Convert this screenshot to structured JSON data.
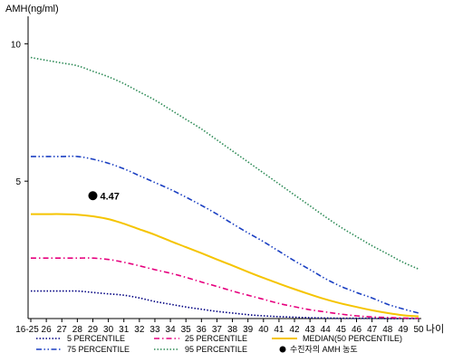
{
  "chart_data": {
    "type": "line",
    "ylabel": "AMH(ng/ml)",
    "xlabel": "나이",
    "categories": [
      "16-25",
      "26",
      "27",
      "28",
      "29",
      "30",
      "31",
      "32",
      "33",
      "34",
      "35",
      "36",
      "37",
      "38",
      "39",
      "40",
      "41",
      "42",
      "43",
      "44",
      "45",
      "46",
      "47",
      "48",
      "49",
      "50"
    ],
    "yticks": [
      5,
      10
    ],
    "ylim": [
      0,
      11
    ],
    "series": [
      {
        "name": "5 PERCENTILE",
        "color": "#000080",
        "dash": "dotted",
        "values": [
          1.0,
          1.0,
          1.0,
          1.0,
          0.95,
          0.9,
          0.85,
          0.75,
          0.62,
          0.52,
          0.42,
          0.34,
          0.26,
          0.2,
          0.14,
          0.1,
          0.07,
          0.05,
          0.03,
          0.02,
          0.01,
          0.01,
          0.01,
          0.0,
          0.0,
          0.0
        ]
      },
      {
        "name": "25 PERCENTILE",
        "color": "#e6007e",
        "dash": "dashdot",
        "values": [
          2.2,
          2.2,
          2.2,
          2.2,
          2.2,
          2.15,
          2.05,
          1.92,
          1.78,
          1.65,
          1.5,
          1.33,
          1.17,
          1.0,
          0.85,
          0.7,
          0.55,
          0.43,
          0.32,
          0.24,
          0.16,
          0.1,
          0.06,
          0.04,
          0.02,
          0.01
        ]
      },
      {
        "name": "MEDIAN(50 PERCENTILE)",
        "color": "#f5c400",
        "dash": "solid",
        "values": [
          3.8,
          3.8,
          3.8,
          3.78,
          3.72,
          3.62,
          3.45,
          3.25,
          3.05,
          2.82,
          2.6,
          2.38,
          2.15,
          1.93,
          1.7,
          1.48,
          1.27,
          1.07,
          0.88,
          0.7,
          0.55,
          0.42,
          0.3,
          0.2,
          0.12,
          0.08
        ]
      },
      {
        "name": "75 PERCENTILE",
        "color": "#1a3fc2",
        "dash": "dashdotdot",
        "values": [
          5.9,
          5.9,
          5.9,
          5.9,
          5.8,
          5.65,
          5.45,
          5.2,
          4.95,
          4.7,
          4.42,
          4.12,
          3.8,
          3.45,
          3.12,
          2.8,
          2.45,
          2.1,
          1.78,
          1.45,
          1.17,
          0.95,
          0.75,
          0.52,
          0.35,
          0.2
        ]
      },
      {
        "name": "95 PERCENTILE",
        "color": "#2e8b57",
        "dash": "dotted",
        "values": [
          9.5,
          9.4,
          9.3,
          9.2,
          9.0,
          8.8,
          8.55,
          8.25,
          7.95,
          7.6,
          7.25,
          6.9,
          6.5,
          6.1,
          5.7,
          5.3,
          4.9,
          4.5,
          4.1,
          3.7,
          3.32,
          2.98,
          2.65,
          2.35,
          2.05,
          1.8
        ]
      }
    ],
    "highlight_point": {
      "name": "수진자의 AMH 농도",
      "x": "29",
      "y": 4.47,
      "label": "4.47",
      "color": "#000000"
    },
    "legend": {
      "position": "bottom",
      "marker_label": "수진자의 AMH 농도"
    }
  }
}
